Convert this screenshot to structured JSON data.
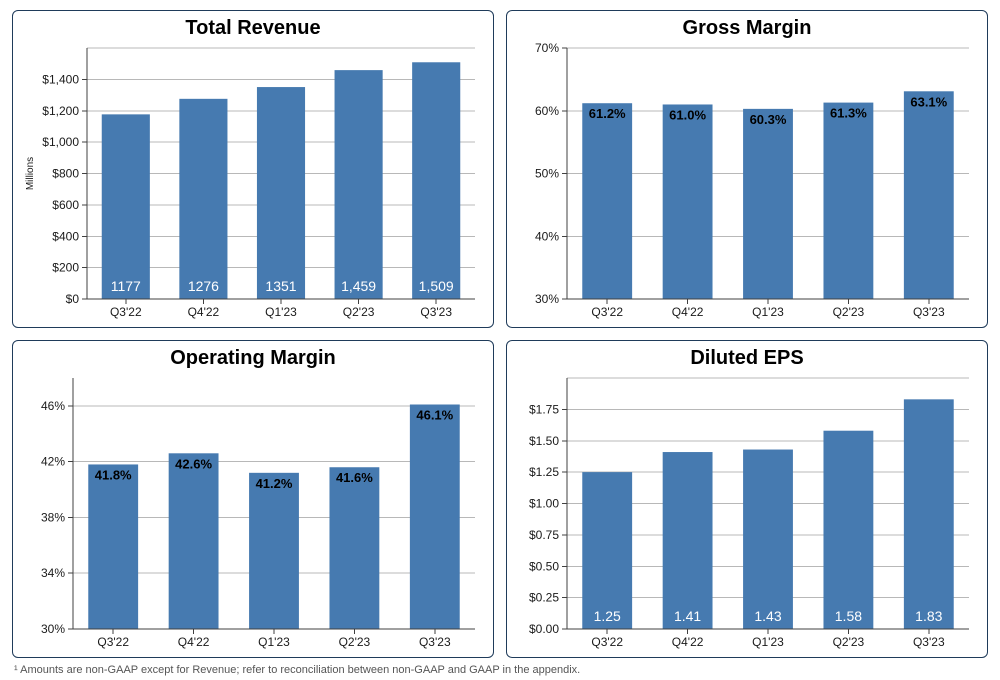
{
  "background_color": "#ffffff",
  "panel_border_color": "#1f3b5a",
  "axis_color": "#404040",
  "gridline_color": "#b8b8b8",
  "categories": [
    "Q3'22",
    "Q4'22",
    "Q1'23",
    "Q2'23",
    "Q3'23"
  ],
  "category_fontsize": 12,
  "tick_fontsize": 12,
  "footnote": "¹ Amounts are non-GAAP except for Revenue; refer to reconciliation between non-GAAP and GAAP in the appendix.",
  "charts": {
    "revenue": {
      "type": "bar",
      "title": "Total Revenue",
      "title_fontsize": 20,
      "ylabel": "Millions",
      "ylabel_fontsize": 10,
      "ylim": [
        0,
        1600
      ],
      "ytick_step": 200,
      "y_prefix": "$",
      "y_suffix": "",
      "y_thousands_comma": true,
      "bar_color": "#467ab0",
      "bar_width": 0.62,
      "show_gridlines": true,
      "values": [
        1177,
        1276,
        1351,
        1459,
        1509
      ],
      "value_labels": [
        "1177",
        "1276",
        "1351",
        "1,459",
        "1,509"
      ],
      "value_label_color": "#ffffff",
      "value_label_position": "inside-bottom",
      "value_label_fontsize": 14,
      "ytick_label_max": 1400
    },
    "gross_margin": {
      "type": "bar",
      "title": "Gross Margin",
      "title_fontsize": 20,
      "ylabel": "",
      "ylim": [
        30,
        70
      ],
      "ytick_step": 10,
      "y_prefix": "",
      "y_suffix": "%",
      "y_thousands_comma": false,
      "bar_color": "#467ab0",
      "bar_width": 0.62,
      "show_gridlines": true,
      "values": [
        61.2,
        61.0,
        60.3,
        61.3,
        63.1
      ],
      "value_labels": [
        "61.2%",
        "61.0%",
        "60.3%",
        "61.3%",
        "63.1%"
      ],
      "value_label_color": "#000000",
      "value_label_position": "inside-top",
      "value_label_fontsize": 13,
      "value_label_bold": true
    },
    "operating_margin": {
      "type": "bar",
      "title": "Operating Margin",
      "title_fontsize": 20,
      "ylabel": "",
      "ylim": [
        30,
        48
      ],
      "ytick_step": 4,
      "y_prefix": "",
      "y_suffix": "%",
      "y_thousands_comma": false,
      "bar_color": "#467ab0",
      "bar_width": 0.62,
      "show_gridlines": true,
      "values": [
        41.8,
        42.6,
        41.2,
        41.6,
        46.1
      ],
      "value_labels": [
        "41.8%",
        "42.6%",
        "41.2%",
        "41.6%",
        "46.1%"
      ],
      "value_label_color": "#000000",
      "value_label_position": "inside-top",
      "value_label_fontsize": 13,
      "value_label_bold": true,
      "ytick_label_max": 46
    },
    "diluted_eps": {
      "type": "bar",
      "title": "Diluted EPS",
      "title_fontsize": 20,
      "ylabel": "",
      "ylim": [
        0,
        2.0
      ],
      "ytick_step": 0.25,
      "y_prefix": "$",
      "y_suffix": "",
      "y_thousands_comma": false,
      "y_decimals": 2,
      "bar_color": "#467ab0",
      "bar_width": 0.62,
      "show_gridlines": true,
      "values": [
        1.25,
        1.41,
        1.43,
        1.58,
        1.83
      ],
      "value_labels": [
        "1.25",
        "1.41",
        "1.43",
        "1.58",
        "1.83"
      ],
      "value_label_color": "#ffffff",
      "value_label_position": "inside-bottom",
      "value_label_fontsize": 14,
      "ytick_label_max": 1.75
    }
  }
}
